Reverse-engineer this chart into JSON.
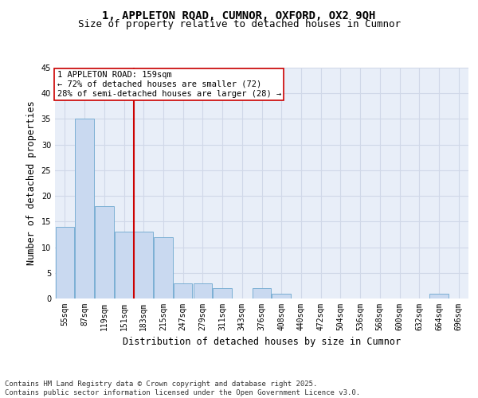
{
  "title1": "1, APPLETON ROAD, CUMNOR, OXFORD, OX2 9QH",
  "title2": "Size of property relative to detached houses in Cumnor",
  "xlabel": "Distribution of detached houses by size in Cumnor",
  "ylabel": "Number of detached properties",
  "categories": [
    "55sqm",
    "87sqm",
    "119sqm",
    "151sqm",
    "183sqm",
    "215sqm",
    "247sqm",
    "279sqm",
    "311sqm",
    "343sqm",
    "376sqm",
    "408sqm",
    "440sqm",
    "472sqm",
    "504sqm",
    "536sqm",
    "568sqm",
    "600sqm",
    "632sqm",
    "664sqm",
    "696sqm"
  ],
  "values": [
    14,
    35,
    18,
    13,
    13,
    12,
    3,
    3,
    2,
    0,
    2,
    1,
    0,
    0,
    0,
    0,
    0,
    0,
    0,
    1,
    0
  ],
  "bar_color": "#c9d9f0",
  "bar_edge_color": "#7bafd4",
  "grid_color": "#d0d8e8",
  "background_color": "#e8eef8",
  "vline_x": 3.5,
  "vline_color": "#cc0000",
  "annotation_line1": "1 APPLETON ROAD: 159sqm",
  "annotation_line2": "← 72% of detached houses are smaller (72)",
  "annotation_line3": "28% of semi-detached houses are larger (28) →",
  "annotation_box_color": "#ffffff",
  "annotation_box_edge": "#cc0000",
  "ylim": [
    0,
    45
  ],
  "yticks": [
    0,
    5,
    10,
    15,
    20,
    25,
    30,
    35,
    40,
    45
  ],
  "footnote": "Contains HM Land Registry data © Crown copyright and database right 2025.\nContains public sector information licensed under the Open Government Licence v3.0.",
  "title_fontsize": 10,
  "subtitle_fontsize": 9,
  "axis_label_fontsize": 8.5,
  "tick_fontsize": 7,
  "annotation_fontsize": 7.5,
  "footnote_fontsize": 6.5
}
